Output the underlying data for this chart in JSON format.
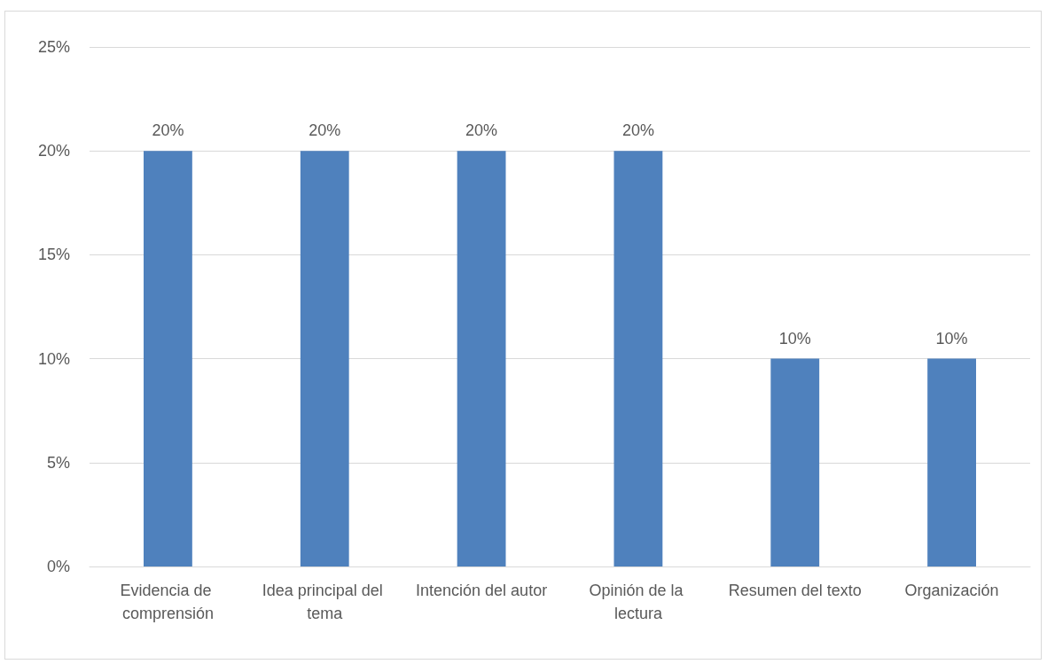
{
  "chart_data": {
    "type": "bar",
    "categories": [
      "Evidencia de comprensión",
      "Idea principal del tema",
      "Intención del autor",
      "Opinión de la lectura",
      "Resumen del texto",
      "Organización"
    ],
    "values": [
      20,
      20,
      20,
      20,
      10,
      10
    ],
    "value_labels": [
      "20%",
      "20%",
      "20%",
      "20%",
      "10%",
      "10%"
    ],
    "color": "#4f81bd",
    "ylim": [
      0,
      25
    ],
    "yticks": [
      {
        "value": 0,
        "label": "0%"
      },
      {
        "value": 5,
        "label": "5%"
      },
      {
        "value": 10,
        "label": "10%"
      },
      {
        "value": 15,
        "label": "15%"
      },
      {
        "value": 20,
        "label": "20%"
      },
      {
        "value": 25,
        "label": "25%"
      }
    ],
    "grid": "y"
  }
}
